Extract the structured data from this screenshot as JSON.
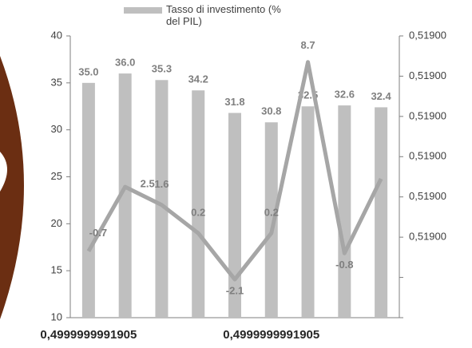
{
  "chart_data": {
    "type": "bar",
    "legend": "Tasso di investimento (% del PIL)",
    "categories": [
      "0,4999999991905",
      null,
      null,
      null,
      null,
      "0,4999999991905",
      null,
      null,
      null
    ],
    "series": [
      {
        "name": "Tasso di investimento (% del PIL)",
        "type": "bar",
        "color": "#bfbfbf",
        "values": [
          35.0,
          36.0,
          35.3,
          34.2,
          31.8,
          30.8,
          32.5,
          32.6,
          32.4
        ],
        "value_labels": [
          "35.0",
          "36.0",
          "35.3",
          "34.2",
          "31.8",
          "30.8",
          "32.5",
          "32.6",
          "32.4"
        ]
      },
      {
        "type": "line",
        "axis": "y2",
        "color": "#a6a6a6",
        "values": [
          -0.7,
          2.5,
          1.6,
          0.2,
          -2.1,
          0.2,
          8.7,
          -0.8,
          2.9
        ],
        "value_labels": [
          "-0.7",
          "2.5",
          "1.6",
          "0.2",
          "-2.1",
          "0.2",
          "8.7",
          "-0.8",
          null
        ]
      }
    ],
    "ylim": [
      10,
      40
    ],
    "yticks": [
      10,
      15,
      20,
      25,
      30,
      35,
      40
    ],
    "y2lim": [
      -4,
      10
    ],
    "y2ticks": [
      {
        "value": -4,
        "label": null
      },
      {
        "value": -2,
        "label": null
      },
      {
        "value": 0,
        "label": "0,51900"
      },
      {
        "value": 2,
        "label": "0,51900"
      },
      {
        "value": 4,
        "label": "0,51900"
      },
      {
        "value": 6,
        "label": "0,51900"
      },
      {
        "value": 8,
        "label": "0,51900"
      },
      {
        "value": 10,
        "label": "0,51900"
      }
    ],
    "grid": false,
    "legend_position": "top"
  }
}
